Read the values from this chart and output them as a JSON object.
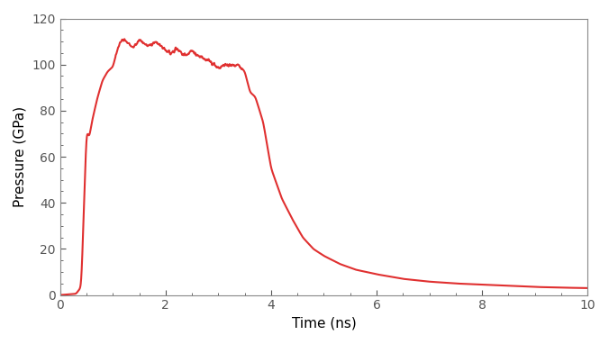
{
  "line_color": "#e03030",
  "line_width": 1.5,
  "xlabel": "Time (ns)",
  "ylabel": "Pressure (GPa)",
  "xlim": [
    0,
    10
  ],
  "ylim": [
    0,
    120
  ],
  "xticks": [
    0,
    2,
    4,
    6,
    8,
    10
  ],
  "yticks": [
    0,
    20,
    40,
    60,
    80,
    100,
    120
  ],
  "background_color": "#ffffff",
  "tick_color": "#555555",
  "spine_color": "#888888",
  "t_knots": [
    0.0,
    0.3,
    0.4,
    0.5,
    0.55,
    0.6,
    0.7,
    0.8,
    0.9,
    1.0,
    1.1,
    1.2,
    1.3,
    1.4,
    1.5,
    1.6,
    1.7,
    1.8,
    1.9,
    2.0,
    2.1,
    2.2,
    2.3,
    2.4,
    2.5,
    2.6,
    2.7,
    2.8,
    2.9,
    3.0,
    3.1,
    3.2,
    3.3,
    3.4,
    3.5,
    3.6,
    3.7,
    3.85,
    4.0,
    4.2,
    4.4,
    4.6,
    4.8,
    5.0,
    5.3,
    5.6,
    6.0,
    6.5,
    7.0,
    7.5,
    8.0,
    8.5,
    9.0,
    9.5,
    10.0
  ],
  "p_knots": [
    0.0,
    0.5,
    3.5,
    72.0,
    68.0,
    75.0,
    85.0,
    93.0,
    97.0,
    99.0,
    108.0,
    111.0,
    109.0,
    107.5,
    111.0,
    109.0,
    108.0,
    110.0,
    108.0,
    106.0,
    105.0,
    107.0,
    105.0,
    104.0,
    106.0,
    104.0,
    103.0,
    102.0,
    100.0,
    98.5,
    100.0,
    99.5,
    100.0,
    99.5,
    97.0,
    88.0,
    86.0,
    75.0,
    55.0,
    42.0,
    33.0,
    25.0,
    20.0,
    17.0,
    13.5,
    11.0,
    9.0,
    7.0,
    5.8,
    5.0,
    4.5,
    4.0,
    3.5,
    3.2,
    3.0
  ]
}
